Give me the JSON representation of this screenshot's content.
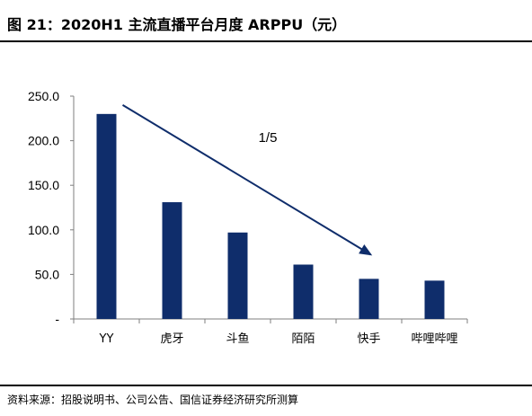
{
  "title": "图 21：2020H1 主流直播平台月度 ARPPU（元）",
  "source": "资料来源：招股说明书、公司公告、国信证券经济研究所测算",
  "chart_data": {
    "type": "bar",
    "categories": [
      "YY",
      "虎牙",
      "斗鱼",
      "陌陌",
      "快手",
      "哔哩哔哩"
    ],
    "series": [
      {
        "values": [
          230,
          131,
          97,
          61,
          45,
          43
        ]
      }
    ],
    "ylim": [
      0,
      250
    ],
    "yticks": [
      "-",
      "50.0",
      "100.0",
      "150.0",
      "200.0",
      "250.0"
    ],
    "bar_color": "#0f2d6b",
    "annotation": {
      "text": "1/5",
      "arrow_from_category": "YY",
      "arrow_to_category": "快手"
    },
    "grid": false
  }
}
